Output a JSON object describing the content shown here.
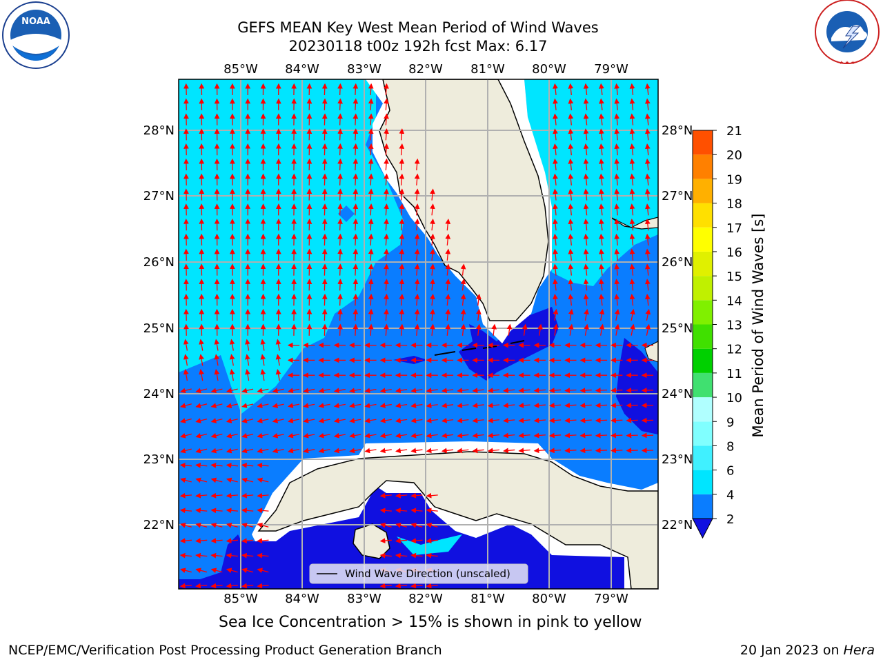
{
  "title": {
    "line1": "GEFS MEAN Key West Mean Period of Wind Waves",
    "line2": "20230118 t00z 192h fcst   Max: 6.17"
  },
  "map": {
    "lon_ticks": [
      "85°W",
      "84°W",
      "83°W",
      "82°W",
      "81°W",
      "80°W",
      "79°W"
    ],
    "lat_ticks": [
      "28°N",
      "27°N",
      "26°N",
      "25°N",
      "24°N",
      "23°N",
      "22°N"
    ],
    "legend_label": "Wind Wave Direction (unscaled)"
  },
  "colorbar": {
    "label": "Mean Period of Wind Waves [s]",
    "ticks": [
      "2",
      "4",
      "6",
      "8",
      "9",
      "10",
      "11",
      "12",
      "13",
      "14",
      "15",
      "16",
      "17",
      "18",
      "19",
      "20",
      "21"
    ],
    "colors": [
      "#0a7dff",
      "#00e5ff",
      "#40f0ff",
      "#80ffff",
      "#b0ffff",
      "#40e070",
      "#00d000",
      "#40e000",
      "#80f000",
      "#c0f000",
      "#e0f000",
      "#ffff00",
      "#ffe000",
      "#ffb000",
      "#ff8000",
      "#ff5000",
      "#ff2000",
      "#ff0000"
    ],
    "extend_color": "#1010e0"
  },
  "footer": {
    "note": "Sea Ice Concentration > 15% is shown in pink to yellow",
    "org": "NCEP/EMC/Verification Post Processing Product Generation Branch",
    "date": "20 Jan 2023 on",
    "machine": "Hera"
  },
  "logos": {
    "noaa": "NOAA",
    "noaa_ring": "NATIONAL OCEANIC AND ATMOSPHERIC ADMINISTRATION · U.S. DEPARTMENT OF COMMERCE",
    "nws_ring": "NATIONAL WEATHER SERVICE"
  },
  "colors": {
    "land": "#eeecdc",
    "light_sea": "#00e5ff",
    "mid_sea": "#0a7dff",
    "deep_sea": "#1010e0",
    "arrow": "#ff0000",
    "grid": "#b0b0b0"
  }
}
